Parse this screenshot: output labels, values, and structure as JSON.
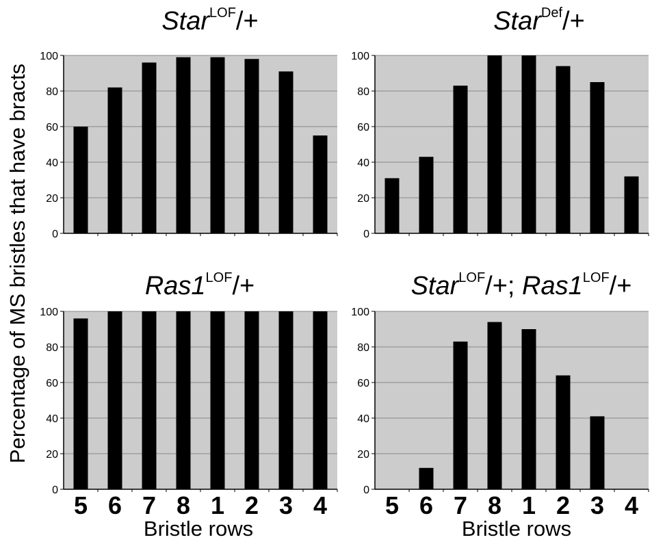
{
  "figure": {
    "ylabel": "Percentage of MS bristles that have bracts",
    "xlabel": "Bristle rows"
  },
  "chart_data": [
    {
      "type": "bar",
      "title": {
        "main": "Star",
        "sup": "LOF",
        "rest": "/+"
      },
      "categories": [
        "5",
        "6",
        "7",
        "8",
        "1",
        "2",
        "3",
        "4"
      ],
      "values": [
        60,
        82,
        96,
        99,
        99,
        98,
        91,
        55
      ],
      "ylim": [
        0,
        100
      ],
      "yticks": [
        0,
        20,
        40,
        60,
        80,
        100
      ],
      "grid": true,
      "xlabel": "",
      "show_xticks": false
    },
    {
      "type": "bar",
      "title": {
        "main": "Star",
        "sup": "Def",
        "rest": "/+"
      },
      "categories": [
        "5",
        "6",
        "7",
        "8",
        "1",
        "2",
        "3",
        "4"
      ],
      "values": [
        31,
        43,
        83,
        100,
        100,
        94,
        85,
        32
      ],
      "ylim": [
        0,
        100
      ],
      "yticks": [
        0,
        20,
        40,
        60,
        80,
        100
      ],
      "grid": true,
      "xlabel": "",
      "show_xticks": false
    },
    {
      "type": "bar",
      "title": {
        "main": "Ras1",
        "sup": "LOF",
        "rest": "/+"
      },
      "categories": [
        "5",
        "6",
        "7",
        "8",
        "1",
        "2",
        "3",
        "4"
      ],
      "values": [
        96,
        100,
        100,
        100,
        100,
        100,
        100,
        100
      ],
      "ylim": [
        0,
        100
      ],
      "yticks": [
        0,
        20,
        40,
        60,
        80,
        100
      ],
      "grid": true,
      "xlabel": "Bristle rows",
      "show_xticks": true
    },
    {
      "type": "bar",
      "title": {
        "main": "Star",
        "sup": "LOF",
        "rest": "/+; ",
        "main2": "Ras1",
        "sup2": "LOF",
        "rest2": "/+"
      },
      "categories": [
        "5",
        "6",
        "7",
        "8",
        "1",
        "2",
        "3",
        "4"
      ],
      "values": [
        0,
        12,
        83,
        94,
        90,
        64,
        41,
        0
      ],
      "ylim": [
        0,
        100
      ],
      "yticks": [
        0,
        20,
        40,
        60,
        80,
        100
      ],
      "grid": true,
      "xlabel": "Bristle rows",
      "show_xticks": true
    }
  ],
  "colors": {
    "plot_bg": "#cccccc",
    "bar": "#000000",
    "grid": "#888888",
    "axis": "#000000"
  }
}
